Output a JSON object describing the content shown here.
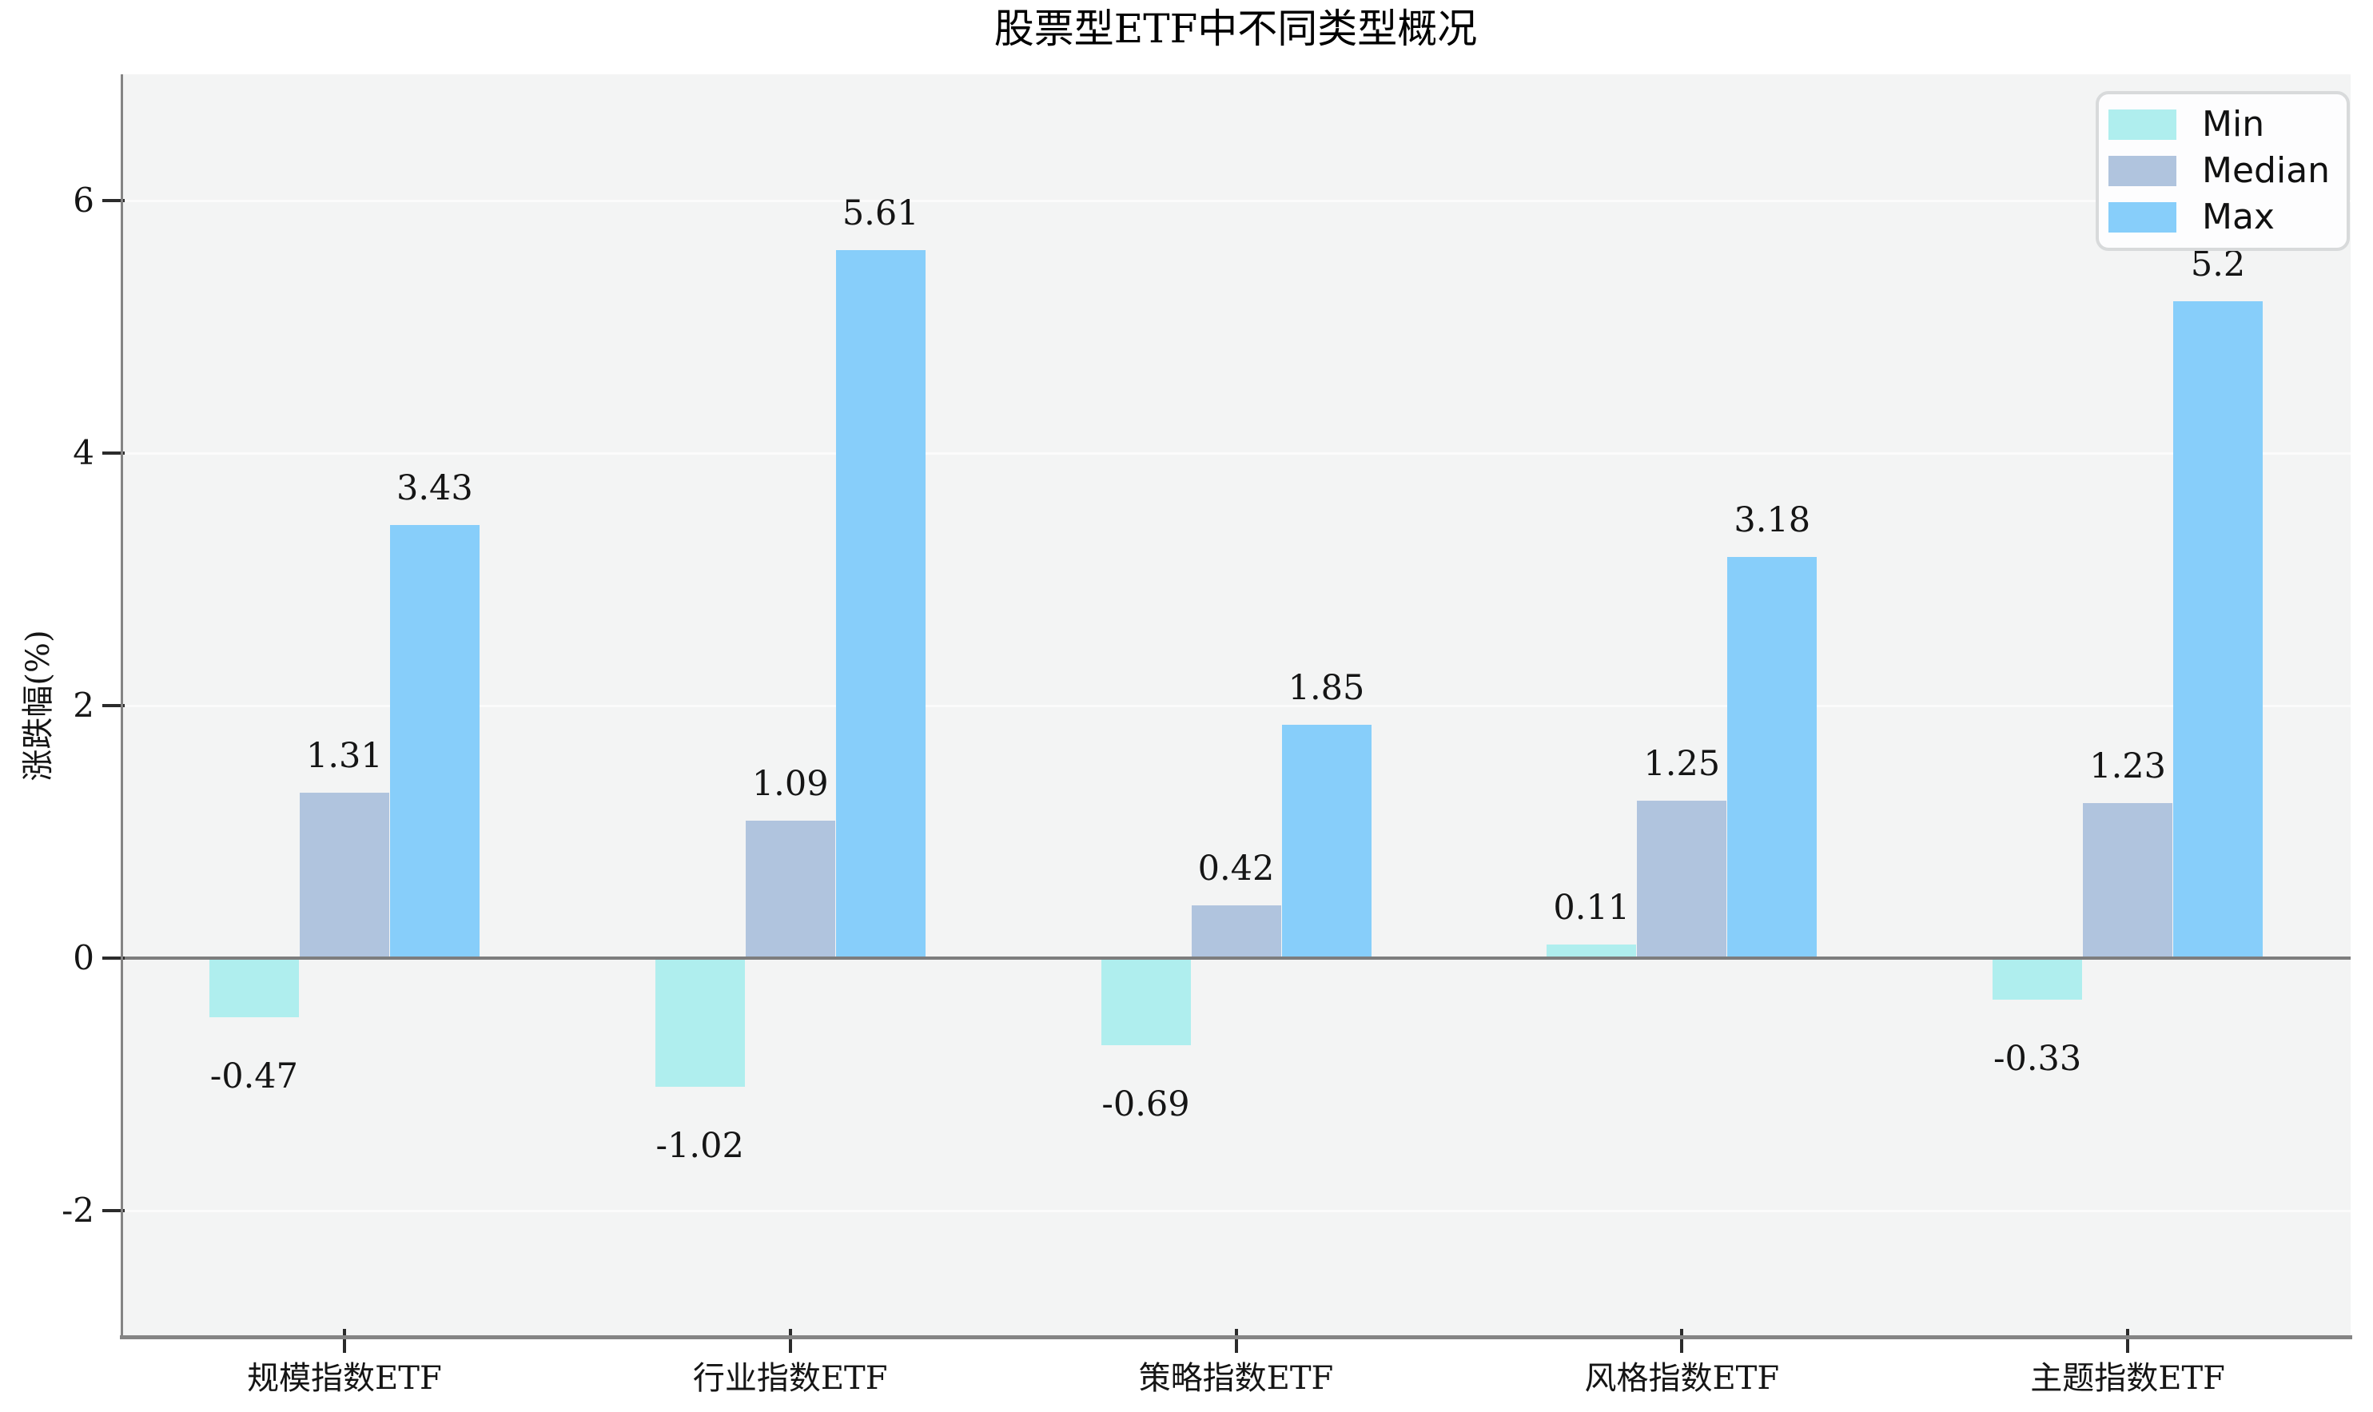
{
  "chart_data": {
    "type": "bar",
    "title": "股票型ETF中不同类型概况",
    "xlabel": "",
    "ylabel": "涨跌幅(%)",
    "categories": [
      "规模指数ETF",
      "行业指数ETF",
      "策略指数ETF",
      "风格指数ETF",
      "主题指数ETF"
    ],
    "series": [
      {
        "name": "Min",
        "color": "#AFEEEE",
        "values": [
          -0.47,
          -1.02,
          -0.69,
          0.11,
          -0.33
        ]
      },
      {
        "name": "Median",
        "color": "#B0C4DE",
        "values": [
          1.31,
          1.09,
          0.42,
          1.25,
          1.23
        ]
      },
      {
        "name": "Max",
        "color": "#87CEFA",
        "values": [
          3.43,
          5.61,
          1.85,
          3.18,
          5.2
        ]
      }
    ],
    "yticks": [
      -2,
      0,
      2,
      4,
      6
    ],
    "ylim": [
      -3,
      7
    ],
    "grid": true,
    "bar_value_labels": true,
    "legend_position": "upper right",
    "legend_labels": [
      "Min",
      "Median",
      "Max"
    ]
  },
  "colors": {
    "figure_bg": "#ffffff",
    "plot_bg": "#f3f4f4",
    "gridline": "#fbfbfb",
    "spine": "#848484",
    "zero_line": "#7d7d7d",
    "tick": "#2b2b2b",
    "text": "#151515",
    "legend_bg": "#fdfdfe",
    "legend_border": "#d8dadb"
  }
}
